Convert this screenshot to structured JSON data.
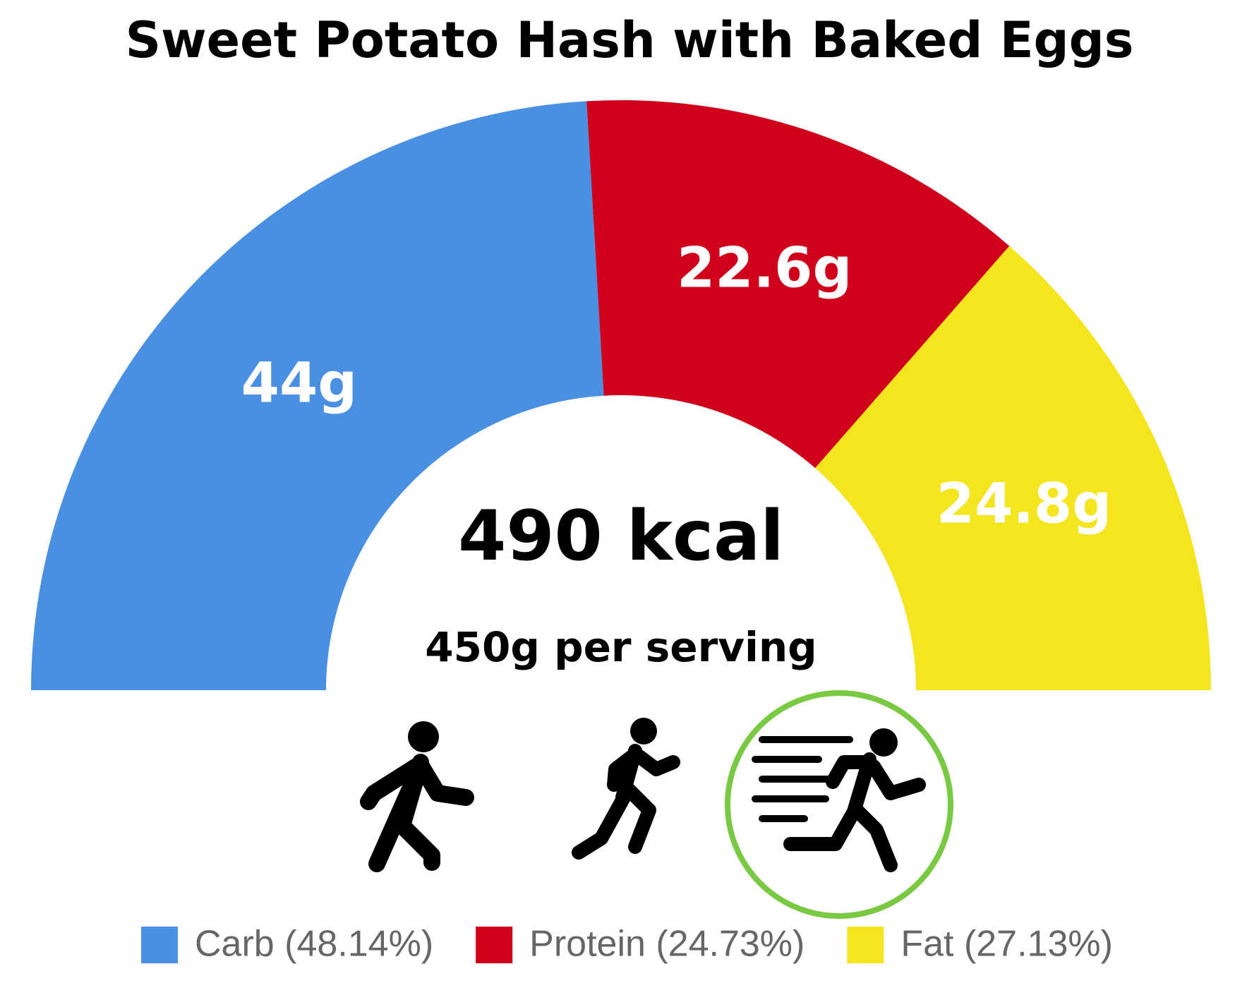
{
  "chart_data": {
    "type": "semidonut",
    "title": "Sweet Potato Hash with Baked Eggs",
    "categories": [
      "Carb (48.14%)",
      "Protein (24.73%)",
      "Fat (27.13%)"
    ],
    "values": [
      44,
      22.6,
      24.8
    ],
    "value_labels": [
      "44g",
      "22.6g",
      "24.8g"
    ],
    "colors": [
      "#4a90e2",
      "#d0021b",
      "#f5e51f"
    ],
    "label_colors": [
      "#ffffff",
      "#ffffff",
      "#ffffff"
    ],
    "annotations": [
      "490 kcal",
      "450g per serving"
    ]
  }
}
